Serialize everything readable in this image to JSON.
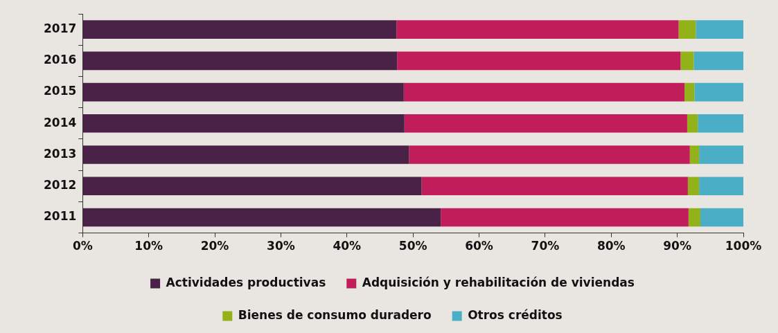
{
  "chart_data": {
    "type": "bar",
    "orientation": "horizontal",
    "stacked": true,
    "categories": [
      "2017",
      "2016",
      "2015",
      "2014",
      "2013",
      "2012",
      "2011"
    ],
    "series": [
      {
        "name": "Actividades productivas",
        "color": "#4b2247",
        "values": [
          47.5,
          47.6,
          48.6,
          48.7,
          49.4,
          51.3,
          54.2
        ]
      },
      {
        "name": "Adquisición y rehabilitación de viviendas",
        "color": "#c21d5b",
        "values": [
          42.7,
          42.9,
          42.5,
          42.8,
          42.5,
          40.3,
          37.5
        ]
      },
      {
        "name": "Bienes de consumo duradero",
        "color": "#93b21a",
        "values": [
          2.6,
          2.0,
          1.5,
          1.6,
          1.4,
          1.7,
          1.8
        ]
      },
      {
        "name": "Otros créditos",
        "color": "#4aaec6",
        "values": [
          7.2,
          7.5,
          7.4,
          6.9,
          6.7,
          6.7,
          6.5
        ]
      }
    ],
    "xlim": [
      0,
      100
    ],
    "xticks": [
      {
        "value": 0,
        "label": "0%"
      },
      {
        "value": 10,
        "label": "10%"
      },
      {
        "value": 20,
        "label": "20%"
      },
      {
        "value": 30,
        "label": "30%"
      },
      {
        "value": 40,
        "label": "40%"
      },
      {
        "value": 50,
        "label": "50%"
      },
      {
        "value": 60,
        "label": "60%"
      },
      {
        "value": 70,
        "label": "70%"
      },
      {
        "value": 80,
        "label": "80%"
      },
      {
        "value": 90,
        "label": "90%"
      },
      {
        "value": 100,
        "label": "100%"
      }
    ],
    "grid": false,
    "legend": "bottom"
  }
}
